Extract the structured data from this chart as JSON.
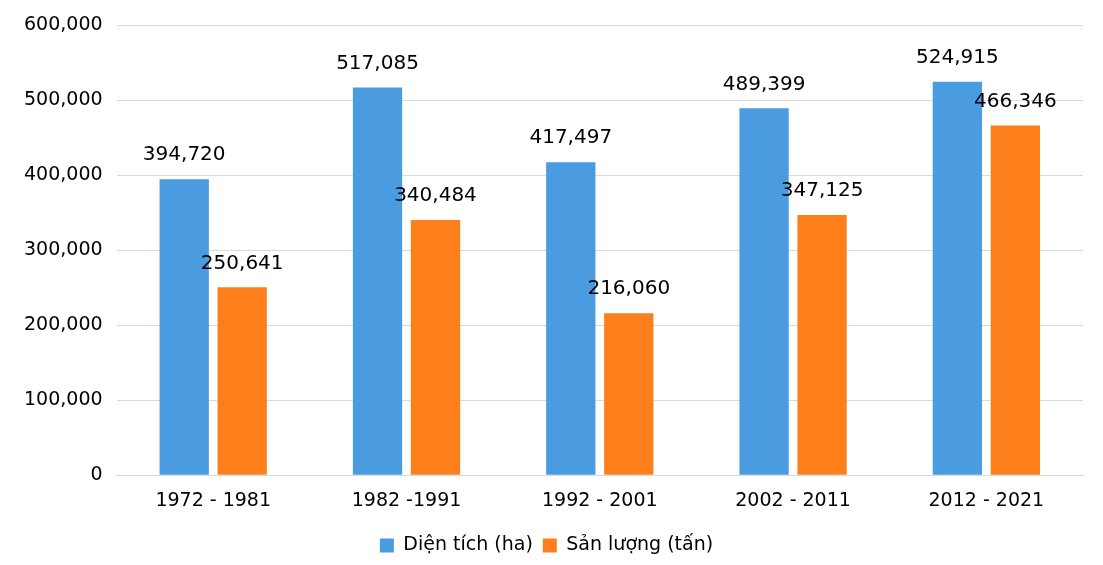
{
  "chart_data": {
    "type": "bar",
    "categories": [
      "1972 - 1981",
      "1982 -1991",
      "1992 - 2001",
      "2002 - 2011",
      "2012 - 2021"
    ],
    "series": [
      {
        "name": "Diện tích (ha)",
        "color": "#4a9be0",
        "values": [
          394720,
          517085,
          417497,
          489399,
          524915
        ],
        "value_labels": [
          "394,720",
          "517,085",
          "417,497",
          "489,399",
          "524,915"
        ]
      },
      {
        "name": "Sản lượng (tấn)",
        "color": "#fd7f1c",
        "values": [
          250641,
          340484,
          216060,
          347125,
          466346
        ],
        "value_labels": [
          "250,641",
          "340,484",
          "216,060",
          "347,125",
          "466,346"
        ]
      }
    ],
    "ylim": [
      0,
      600000
    ],
    "yticks": [
      0,
      {
        "value": 100000,
        "label": "100,000"
      },
      {
        "value": 200000,
        "label": "200,000"
      },
      {
        "value": 300000,
        "label": "300,000"
      },
      {
        "value": 400000,
        "label": "400,000"
      },
      {
        "value": 500000,
        "label": "500,000"
      },
      {
        "value": 600000,
        "label": "600,000"
      }
    ],
    "grid": "y",
    "legend": "bottom"
  }
}
